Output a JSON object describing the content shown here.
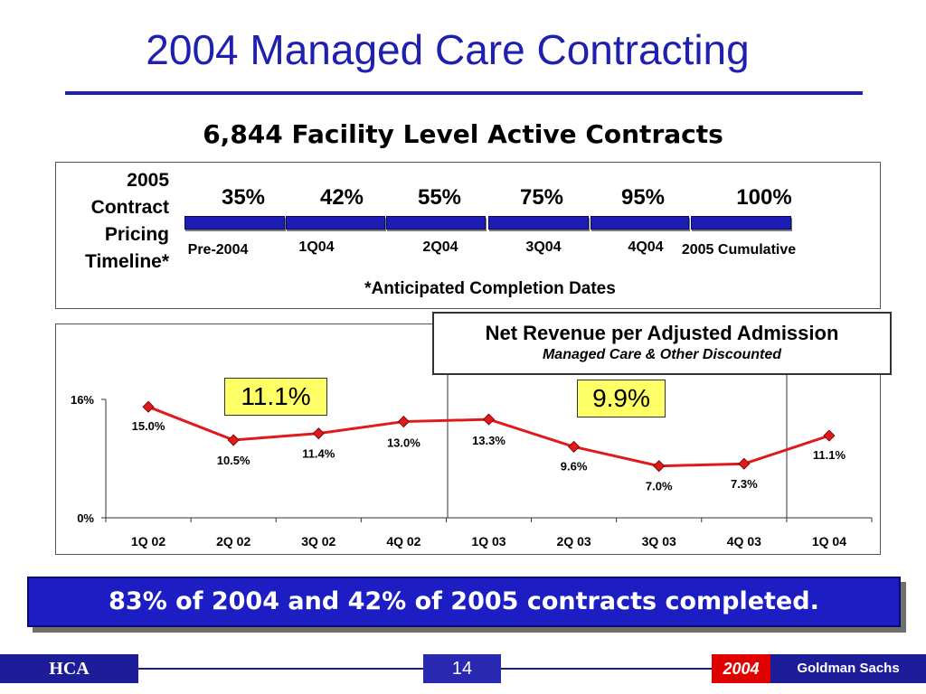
{
  "title": "2004 Managed Care Contracting",
  "subtitle": "6,844 Facility Level Active Contracts",
  "timeline": {
    "label_lines": [
      "2005",
      "Contract",
      "Pricing",
      "Timeline*"
    ],
    "percentages": [
      "35%",
      "42%",
      "55%",
      "75%",
      "95%",
      "100%"
    ],
    "quarters": [
      "Pre-2004",
      "1Q04",
      "2Q04",
      "3Q04",
      "4Q04",
      "2005 Cumulative"
    ],
    "note": "*Anticipated Completion Dates"
  },
  "legend": {
    "title": "Net Revenue per Adjusted Admission",
    "subtitle": "Managed Care & Other Discounted"
  },
  "highlights": [
    "11.1%",
    "9.9%"
  ],
  "chart_data": {
    "type": "line",
    "categories": [
      "1Q 02",
      "2Q 02",
      "3Q 02",
      "4Q 02",
      "1Q 03",
      "2Q 03",
      "3Q 03",
      "4Q 03",
      "1Q 04"
    ],
    "series": [
      {
        "values": [
          15.0,
          10.5,
          11.4,
          13.0,
          13.3,
          9.6,
          7.0,
          7.3,
          11.1
        ],
        "labels": [
          "15.0%",
          "10.5%",
          "11.4%",
          "13.0%",
          "13.3%",
          "9.6%",
          "7.0%",
          "7.3%",
          "11.1%"
        ],
        "color": "#e01a1a"
      }
    ],
    "ylim": [
      0,
      16
    ],
    "y_ticks": [
      "0%",
      "16%"
    ],
    "marker_color": "#e01a1a",
    "grid": false
  },
  "banner": "83% of 2004 and 42% of 2005 contracts completed.",
  "footer": {
    "left": "HCA",
    "page": "14",
    "year": "2004",
    "right": "Goldman Sachs"
  }
}
